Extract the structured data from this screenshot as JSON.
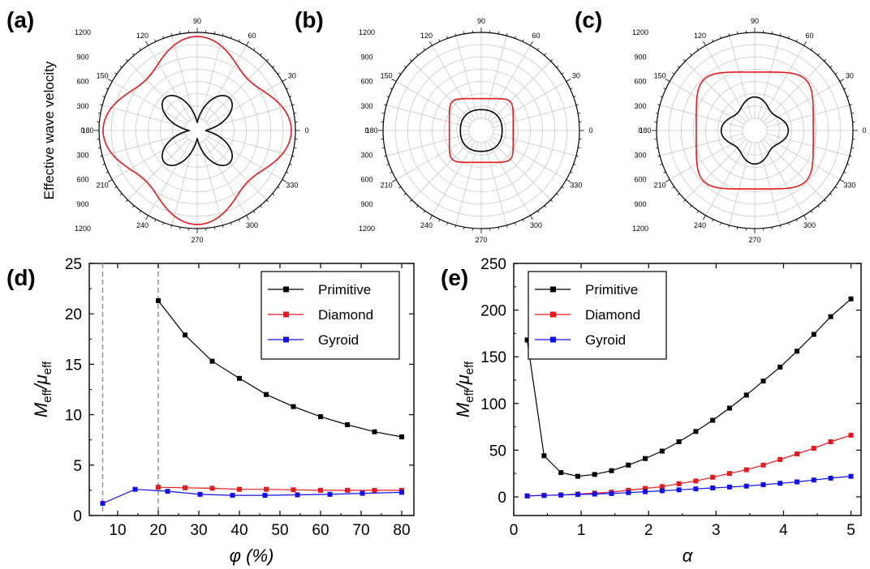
{
  "colors": {
    "primitive": "#000000",
    "diamond": "#e8191c",
    "gyroid": "#1010ee",
    "grid": "#c8c8c8",
    "dash": "#8a8a8a"
  },
  "chart_data": [
    {
      "id": "a",
      "panel_label": "(a)",
      "type": "polar",
      "ylabel": "Effective wave velocity",
      "r_max": 1200,
      "radial_ticks": [
        "0",
        "300",
        "600",
        "900",
        "1200"
      ],
      "angle_ticks": [
        "0",
        "30",
        "60",
        "90",
        "120",
        "150",
        "180",
        "210",
        "240",
        "270",
        "300",
        "330"
      ],
      "series": [
        {
          "color": "#e8191c",
          "r_base": 1015,
          "r_amp": 135,
          "r_power": 1,
          "note_formula": "r = base + amp*cos(4θ)"
        },
        {
          "color": "#000000",
          "r_base": 0,
          "r_amp": 0,
          "petal": true,
          "r_peak": 560,
          "r_min": 100
        }
      ]
    },
    {
      "id": "b",
      "panel_label": "(b)",
      "type": "polar",
      "r_max": 1200,
      "radial_ticks": [
        "0",
        "300",
        "600",
        "900",
        "1200"
      ],
      "angle_ticks": [
        "0",
        "30",
        "60",
        "90",
        "120",
        "150",
        "180",
        "210",
        "240",
        "270",
        "300",
        "330"
      ],
      "series": [
        {
          "color": "#e8191c",
          "superellipse_r": 390,
          "superellipse_n": 7
        },
        {
          "color": "#000000",
          "superellipse_r": 255,
          "superellipse_n": 2.3
        }
      ]
    },
    {
      "id": "c",
      "panel_label": "(c)",
      "type": "polar",
      "r_max": 1200,
      "radial_ticks": [
        "0",
        "300",
        "600",
        "900",
        "1200"
      ],
      "angle_ticks": [
        "0",
        "30",
        "60",
        "90",
        "120",
        "150",
        "180",
        "210",
        "240",
        "270",
        "300",
        "330"
      ],
      "series": [
        {
          "color": "#e8191c",
          "superellipse_r": 715,
          "superellipse_n": 5
        },
        {
          "color": "#000000",
          "rhombus_axial": 410,
          "rhombus_diag": 300
        }
      ]
    },
    {
      "id": "d",
      "panel_label": "(d)",
      "type": "line",
      "xlabel": "φ (%)",
      "ylabel_main": "M",
      "ylabel_sub1": "eff",
      "ylabel_mid": "/μ",
      "ylabel_sub2": "eff",
      "xlim": [
        3,
        83
      ],
      "ylim": [
        0,
        25
      ],
      "xticks": [
        10,
        20,
        30,
        40,
        50,
        60,
        70,
        80
      ],
      "yticks": [
        0,
        5,
        10,
        15,
        20,
        25
      ],
      "vlines": [
        6.3,
        20
      ],
      "legend_position": "top-right",
      "series": [
        {
          "name": "Primitive",
          "color": "#000000",
          "x": [
            20,
            26.6,
            33.3,
            40,
            46.6,
            53.3,
            60,
            66.6,
            73.3,
            80
          ],
          "y": [
            21.3,
            17.9,
            15.3,
            13.6,
            12.0,
            10.8,
            9.8,
            9.0,
            8.3,
            7.8
          ]
        },
        {
          "name": "Diamond",
          "color": "#e8191c",
          "x": [
            20,
            26.6,
            33.3,
            40,
            46.6,
            53.3,
            60,
            66.6,
            73.3,
            80
          ],
          "y": [
            2.8,
            2.75,
            2.7,
            2.6,
            2.6,
            2.55,
            2.5,
            2.5,
            2.5,
            2.5
          ]
        },
        {
          "name": "Gyroid",
          "color": "#1010ee",
          "x": [
            6.3,
            14.3,
            22.3,
            30.3,
            38.3,
            46.3,
            54.3,
            62.3,
            70.3,
            80
          ],
          "y": [
            1.2,
            2.6,
            2.4,
            2.1,
            2.0,
            2.0,
            2.05,
            2.1,
            2.2,
            2.3
          ]
        }
      ]
    },
    {
      "id": "e",
      "panel_label": "(e)",
      "type": "line",
      "xlabel": "α",
      "ylabel_main": "M",
      "ylabel_sub1": "eff",
      "ylabel_mid": "/μ",
      "ylabel_sub2": "eff",
      "xlim": [
        0,
        5.15
      ],
      "ylim": [
        -20,
        250
      ],
      "xticks": [
        0,
        1,
        2,
        3,
        4,
        5
      ],
      "yticks": [
        0,
        50,
        100,
        150,
        200,
        250
      ],
      "legend_position": "top-left",
      "series": [
        {
          "name": "Primitive",
          "color": "#000000",
          "x": [
            0.2,
            0.45,
            0.7,
            0.95,
            1.2,
            1.45,
            1.7,
            1.95,
            2.2,
            2.45,
            2.7,
            2.95,
            3.2,
            3.45,
            3.7,
            3.95,
            4.2,
            4.45,
            4.7,
            5.0
          ],
          "y": [
            168,
            44,
            26,
            22,
            24,
            28,
            34,
            41,
            49,
            59,
            70,
            82,
            95,
            109,
            124,
            139,
            156,
            174,
            193,
            212
          ]
        },
        {
          "name": "Diamond",
          "color": "#e8191c",
          "x": [
            0.2,
            0.45,
            0.7,
            0.95,
            1.2,
            1.45,
            1.7,
            1.95,
            2.2,
            2.45,
            2.7,
            2.95,
            3.2,
            3.45,
            3.7,
            3.95,
            4.2,
            4.45,
            4.7,
            5.0
          ],
          "y": [
            1,
            1.5,
            2,
            3,
            4,
            5,
            7,
            9,
            11,
            14,
            17,
            21,
            25,
            29,
            34,
            40,
            46,
            52,
            59,
            66
          ]
        },
        {
          "name": "Gyroid",
          "color": "#1010ee",
          "x": [
            0.2,
            0.45,
            0.7,
            0.95,
            1.2,
            1.45,
            1.7,
            1.95,
            2.2,
            2.45,
            2.7,
            2.95,
            3.2,
            3.45,
            3.7,
            3.95,
            4.2,
            4.45,
            4.7,
            5.0
          ],
          "y": [
            1,
            1.5,
            2,
            2.5,
            3,
            3.5,
            4.5,
            5.5,
            6.5,
            7.5,
            8.5,
            9.5,
            10.5,
            11.5,
            13,
            14.5,
            16,
            18,
            20,
            22
          ]
        }
      ]
    }
  ]
}
